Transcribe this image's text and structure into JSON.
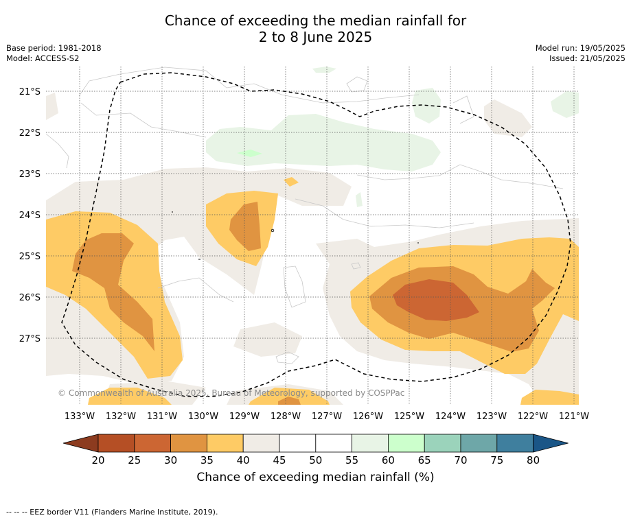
{
  "title": {
    "line1": "Chance of exceeding the median rainfall for",
    "line2": "2 to 8 June 2025"
  },
  "meta_left": {
    "base_period": "Base period: 1981-2018",
    "model": "Model: ACCESS-S2"
  },
  "meta_right": {
    "model_run": "Model run: 19/05/2025",
    "issued": "Issued: 21/05/2025"
  },
  "map": {
    "latitude_labels": [
      "21°S",
      "22°S",
      "23°S",
      "24°S",
      "25°S",
      "26°S",
      "27°S"
    ],
    "longitude_labels": [
      "133°W",
      "132°W",
      "131°W",
      "130°W",
      "129°W",
      "128°W",
      "127°W",
      "126°W",
      "125°W",
      "124°W",
      "123°W",
      "122°W",
      "121°W"
    ],
    "copyright": "© Commonwealth of Australia 2025, Bureau of Meteorology, supported by COSPPac",
    "eez_border_style": "dashed"
  },
  "colorbar": {
    "ticks": [
      "20",
      "25",
      "30",
      "35",
      "40",
      "45",
      "50",
      "55",
      "60",
      "65",
      "70",
      "75",
      "80"
    ],
    "colors": [
      "#8c3b1f",
      "#b54f25",
      "#cc6633",
      "#e09441",
      "#fecb65",
      "#f0ece6",
      "#ffffff",
      "#ffffff",
      "#e8f4e6",
      "#ccffcc",
      "#9bd3bb",
      "#6ea7a8",
      "#3f7f9e",
      "#1a5687"
    ],
    "label": "Chance of exceeding median rainfall (%)"
  },
  "footnote": "--  --  -- EEZ border V11 (Flanders Marine Institute, 2019)."
}
